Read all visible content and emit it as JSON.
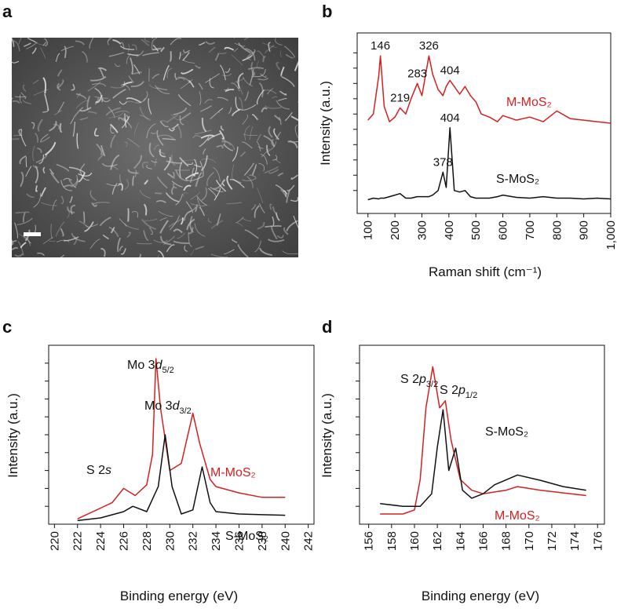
{
  "panel_labels": [
    "a",
    "b",
    "c",
    "d"
  ],
  "chart_data": [
    {
      "type": "line",
      "ylabel": "Intensity (a.u.)",
      "xlabel": "Raman shift (cm⁻¹)",
      "xlim": [
        60,
        1000
      ],
      "xticks": [
        100,
        200,
        300,
        400,
        500,
        600,
        700,
        800,
        900,
        {
          "value": 1000,
          "label": "1,000"
        }
      ],
      "ylim": [
        -0.5,
        11.3
      ],
      "yticks": [
        1,
        2,
        3,
        4,
        5,
        6,
        7,
        8,
        9,
        10
      ],
      "ytick_labels": false,
      "grid": false,
      "x": [
        100,
        120,
        140,
        146,
        160,
        180,
        200,
        219,
        240,
        260,
        283,
        300,
        326,
        340,
        360,
        378,
        390,
        404,
        420,
        440,
        460,
        480,
        500,
        520,
        550,
        580,
        600,
        650,
        700,
        750,
        800,
        850,
        900,
        950,
        1000
      ],
      "series": [
        {
          "name": "M-MoS₂",
          "color": "#d42020",
          "peak_labels": [
            146,
            219,
            283,
            326,
            404
          ],
          "values": [
            5.6,
            6.0,
            8.5,
            9.8,
            6.5,
            5.5,
            5.8,
            6.4,
            6.0,
            7.0,
            8.0,
            7.2,
            9.8,
            8.6,
            7.6,
            7.2,
            7.8,
            8.2,
            7.8,
            7.3,
            7.8,
            7.2,
            6.8,
            6.0,
            5.8,
            5.5,
            5.9,
            5.6,
            5.8,
            5.5,
            6.2,
            5.7,
            5.6,
            5.5,
            5.4
          ]
        },
        {
          "name": "S-MoS₂",
          "color": "#111111",
          "peak_labels": [
            378,
            404
          ],
          "values": [
            0.4,
            0.5,
            0.45,
            0.5,
            0.5,
            0.6,
            0.7,
            0.8,
            0.5,
            0.5,
            0.6,
            0.6,
            0.6,
            0.7,
            1.0,
            2.2,
            1.2,
            5.1,
            1.0,
            0.9,
            1.0,
            0.6,
            0.5,
            0.5,
            0.5,
            0.6,
            0.7,
            0.55,
            0.5,
            0.6,
            0.5,
            0.5,
            0.45,
            0.5,
            0.45
          ]
        }
      ]
    },
    {
      "type": "line",
      "ylabel": "Intensity (a.u.)",
      "xlabel": "Binding energy (eV)",
      "xlim": [
        219.5,
        242.5
      ],
      "xticks": [
        220,
        222,
        224,
        226,
        228,
        230,
        232,
        234,
        236,
        238,
        240,
        242
      ],
      "ylim": [
        0,
        10
      ],
      "yticks": [
        1,
        2,
        3,
        4,
        5,
        6,
        7,
        8,
        9
      ],
      "ytick_labels": false,
      "grid": false,
      "annotations": [
        {
          "text": "S 2",
          "italic": "s"
        },
        {
          "text": "Mo 3",
          "italic": "d",
          "sub": "5/2"
        },
        {
          "text": "Mo 3",
          "italic": "d",
          "sub": "3/2"
        }
      ],
      "series": [
        {
          "name": "M-MoS₂",
          "color": "#d42020",
          "x": [
            222,
            224,
            225,
            226,
            227,
            228,
            228.5,
            228.8,
            229.2,
            230,
            231,
            232,
            232.6,
            233.5,
            234,
            236,
            238,
            240
          ],
          "values": [
            0.3,
            0.9,
            1.2,
            2.0,
            1.6,
            2.2,
            3.9,
            9.25,
            6.5,
            3.0,
            3.4,
            6.2,
            4.5,
            2.5,
            2.1,
            1.75,
            1.5,
            1.5
          ]
        },
        {
          "name": "S-MoS₂",
          "color": "#111111",
          "x": [
            222,
            224,
            226,
            226.8,
            228,
            229,
            229.6,
            230.2,
            231,
            232,
            232.8,
            233.5,
            234,
            236,
            238,
            240
          ],
          "values": [
            0.2,
            0.35,
            0.7,
            1.0,
            0.7,
            2.1,
            5.0,
            2.1,
            0.57,
            0.8,
            3.2,
            1.2,
            0.7,
            0.57,
            0.53,
            0.5
          ]
        }
      ]
    },
    {
      "type": "line",
      "ylabel": "Intensity (a.u.)",
      "xlabel": "Binding energy (eV)",
      "xlim": [
        155.2,
        176.6
      ],
      "xticks": [
        156,
        158,
        160,
        162,
        164,
        166,
        168,
        170,
        172,
        174,
        176
      ],
      "ylim": [
        0,
        10
      ],
      "yticks": [
        1,
        2,
        3,
        4,
        5,
        6,
        7,
        8,
        9
      ],
      "ytick_labels": false,
      "grid": false,
      "annotations": [
        {
          "text": "S 2",
          "italic": "p",
          "sub": "3/2"
        },
        {
          "text": "S 2",
          "italic": "p",
          "sub": "1/2"
        }
      ],
      "series": [
        {
          "name": "M-MoS₂",
          "color": "#d42020",
          "x": [
            157,
            159,
            160,
            160.5,
            161,
            161.6,
            162.2,
            162.7,
            163.2,
            164,
            165,
            166,
            168,
            169,
            171,
            173,
            175
          ],
          "values": [
            0.57,
            0.57,
            0.8,
            2.5,
            6.5,
            8.8,
            6.5,
            6.9,
            4.7,
            2.5,
            1.9,
            1.7,
            1.9,
            2.1,
            1.9,
            1.75,
            1.6
          ]
        },
        {
          "name": "S-MoS₂",
          "color": "#111111",
          "x": [
            157,
            159,
            160.5,
            161.5,
            162,
            162.5,
            163,
            163.6,
            164.2,
            165,
            166,
            167,
            169,
            171,
            173,
            175
          ],
          "values": [
            1.15,
            1.0,
            1.0,
            1.7,
            4.3,
            6.4,
            3.0,
            4.25,
            1.9,
            1.45,
            1.7,
            2.2,
            2.75,
            2.45,
            2.1,
            1.9
          ]
        }
      ]
    }
  ]
}
